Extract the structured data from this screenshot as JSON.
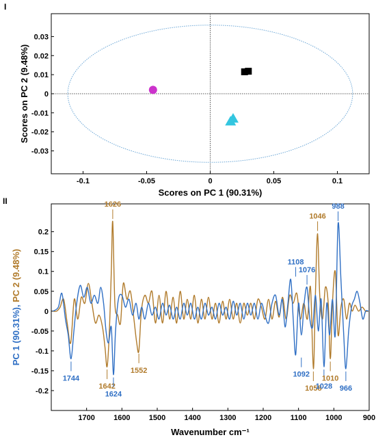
{
  "panel_labels": [
    "I",
    "II"
  ],
  "chart_data": [
    {
      "type": "scatter",
      "panel": "I",
      "xlabel": "Scores on PC 1 (90.31%)",
      "ylabel": "Scores on PC 2 (9.48%)",
      "xlim": [
        -0.125,
        0.125
      ],
      "ylim": [
        -0.042,
        0.042
      ],
      "xticks": [
        "-0.1",
        "-0.05",
        "0",
        "0.05",
        "0.1"
      ],
      "yticks": [
        "0.03",
        "0.02",
        "0.01",
        "0",
        "-0.01",
        "-0.02",
        "-0.03"
      ],
      "xtick_values": [
        -0.1,
        -0.05,
        0,
        0.05,
        0.1
      ],
      "ytick_values": [
        0.03,
        0.02,
        0.01,
        0,
        -0.01,
        -0.02,
        -0.03
      ],
      "confidence_ellipse": {
        "x_radius": 0.112,
        "y_radius": 0.036
      },
      "points": [
        {
          "marker": "circle",
          "color": "#cc33cc",
          "x": -0.045,
          "y": 0.002
        },
        {
          "marker": "square",
          "color": "#000000",
          "x": 0.027,
          "y": 0.0115
        },
        {
          "marker": "square",
          "color": "#000000",
          "x": 0.03,
          "y": 0.0118
        },
        {
          "marker": "triangle",
          "color": "#33c6e0",
          "x": 0.018,
          "y": -0.013
        },
        {
          "marker": "triangle",
          "color": "#33c6e0",
          "x": 0.016,
          "y": -0.0145
        }
      ],
      "grid": false
    },
    {
      "type": "line",
      "panel": "II",
      "xlabel": "Wavenumber cm⁻¹",
      "ylabel_parts": [
        {
          "text": "PC 1 (90.31%)",
          "color": "#2f6fc4"
        },
        {
          "text": ", ",
          "color": "#2f6fc4"
        },
        {
          "text": "PC 2 (9.48%)",
          "color": "#b07a2a"
        }
      ],
      "xlim": [
        1800,
        900
      ],
      "ylim": [
        -0.25,
        0.27
      ],
      "xticks": [
        "1700",
        "1600",
        "1500",
        "1400",
        "1300",
        "1200",
        "1100",
        "1000",
        "900"
      ],
      "xtick_values": [
        1700,
        1600,
        1500,
        1400,
        1300,
        1200,
        1100,
        1000,
        900
      ],
      "yticks": [
        "0.2",
        "0.15",
        "0.1",
        "0.05",
        "0",
        "-0.05",
        "-0.1",
        "-0.15",
        "-0.2"
      ],
      "ytick_values": [
        0.2,
        0.15,
        0.1,
        0.05,
        0,
        -0.05,
        -0.1,
        -0.15,
        -0.2
      ],
      "series": [
        {
          "name": "PC 1 (90.31%)",
          "color": "#2f6fc4",
          "x": [
            1795,
            1780,
            1770,
            1760,
            1752,
            1744,
            1736,
            1728,
            1718,
            1708,
            1698,
            1688,
            1678,
            1668,
            1660,
            1652,
            1645,
            1638,
            1630,
            1624,
            1618,
            1610,
            1600,
            1590,
            1580,
            1570,
            1560,
            1552,
            1544,
            1535,
            1525,
            1515,
            1505,
            1495,
            1485,
            1475,
            1465,
            1455,
            1445,
            1435,
            1425,
            1415,
            1405,
            1395,
            1385,
            1375,
            1365,
            1355,
            1345,
            1335,
            1325,
            1315,
            1305,
            1295,
            1285,
            1275,
            1265,
            1255,
            1245,
            1235,
            1225,
            1215,
            1205,
            1195,
            1185,
            1175,
            1165,
            1155,
            1146,
            1138,
            1130,
            1122,
            1115,
            1108,
            1100,
            1092,
            1084,
            1076,
            1068,
            1060,
            1052,
            1044,
            1036,
            1028,
            1020,
            1012,
            1004,
            996,
            988,
            980,
            972,
            966,
            958,
            950,
            942,
            934,
            926,
            918,
            910,
            902
          ],
          "y": [
            0.0,
            0.01,
            0.045,
            -0.02,
            -0.06,
            -0.12,
            -0.05,
            0.02,
            0.065,
            0.035,
            0.06,
            0.02,
            0.04,
            0.02,
            0.06,
            0.02,
            -0.05,
            -0.08,
            -0.04,
            -0.16,
            -0.05,
            0.03,
            0.04,
            0.01,
            0.03,
            -0.01,
            0.02,
            -0.02,
            0.01,
            -0.02,
            0.02,
            -0.01,
            0.01,
            -0.02,
            0.02,
            -0.01,
            0.015,
            -0.02,
            0.01,
            -0.02,
            0.02,
            -0.01,
            0.02,
            -0.02,
            0.01,
            -0.02,
            0.02,
            -0.01,
            0.01,
            -0.02,
            0.02,
            -0.01,
            0.01,
            -0.02,
            0.025,
            -0.01,
            0.02,
            -0.02,
            0.02,
            -0.01,
            0.02,
            -0.02,
            0.02,
            -0.01,
            -0.03,
            0.02,
            0.04,
            -0.01,
            0.03,
            -0.04,
            0.02,
            0.08,
            -0.02,
            -0.11,
            0.02,
            -0.06,
            0.02,
            0.06,
            -0.02,
            -0.04,
            0.04,
            -0.05,
            0.03,
            -0.14,
            0.02,
            -0.06,
            0.03,
            -0.06,
            0.22,
            0.08,
            -0.06,
            -0.145,
            -0.05,
            0.01,
            0.03,
            0.05,
            0.02,
            -0.02,
            0.0,
            0.0
          ]
        },
        {
          "name": "PC 2 (9.48%)",
          "color": "#b07a2a",
          "x": [
            1795,
            1785,
            1775,
            1765,
            1755,
            1745,
            1735,
            1725,
            1715,
            1705,
            1695,
            1685,
            1675,
            1665,
            1655,
            1648,
            1642,
            1636,
            1630,
            1626,
            1620,
            1612,
            1604,
            1596,
            1586,
            1576,
            1566,
            1558,
            1552,
            1545,
            1535,
            1525,
            1515,
            1505,
            1495,
            1485,
            1475,
            1465,
            1455,
            1445,
            1435,
            1425,
            1415,
            1405,
            1395,
            1385,
            1375,
            1365,
            1355,
            1345,
            1335,
            1325,
            1315,
            1305,
            1295,
            1285,
            1275,
            1265,
            1255,
            1245,
            1235,
            1225,
            1215,
            1205,
            1195,
            1185,
            1175,
            1165,
            1155,
            1145,
            1135,
            1125,
            1115,
            1105,
            1095,
            1085,
            1075,
            1066,
            1058,
            1052,
            1046,
            1040,
            1032,
            1024,
            1016,
            1010,
            1004,
            996,
            988,
            980,
            972,
            964,
            956,
            948,
            940,
            930,
            920,
            910,
            902
          ],
          "y": [
            0.0,
            0.0,
            0.01,
            0.03,
            -0.03,
            -0.08,
            0.03,
            -0.02,
            0.035,
            0.02,
            0.07,
            0.02,
            -0.03,
            -0.01,
            -0.04,
            -0.09,
            -0.14,
            -0.06,
            0.1,
            0.225,
            0.02,
            -0.01,
            -0.03,
            0.07,
            0.03,
            0.05,
            -0.02,
            -0.08,
            -0.1,
            0.0,
            0.04,
            0.02,
            0.05,
            -0.03,
            0.04,
            -0.03,
            0.05,
            -0.02,
            0.035,
            -0.03,
            0.05,
            -0.02,
            0.03,
            -0.02,
            0.04,
            -0.03,
            0.03,
            -0.02,
            0.035,
            -0.02,
            0.02,
            -0.03,
            0.025,
            -0.02,
            0.03,
            -0.02,
            0.02,
            -0.03,
            0.02,
            -0.01,
            0.02,
            -0.02,
            0.03,
            0.01,
            -0.02,
            0.03,
            -0.02,
            0.025,
            -0.015,
            0.035,
            -0.02,
            0.04,
            0.02,
            0.045,
            -0.02,
            0.02,
            -0.02,
            0.06,
            -0.145,
            0.05,
            0.195,
            0.04,
            -0.02,
            0.06,
            0.02,
            -0.12,
            0.02,
            0.1,
            -0.06,
            0.01,
            0.03,
            -0.02,
            0.02,
            0.0,
            0.015,
            0.0,
            0.01,
            0.0,
            0.0
          ]
        }
      ],
      "annotations": [
        {
          "text": "1744",
          "x": 1744,
          "y": -0.12,
          "color": "#2f6fc4",
          "side": "below"
        },
        {
          "text": "1642",
          "x": 1642,
          "y": -0.14,
          "color": "#b07a2a",
          "side": "below"
        },
        {
          "text": "1624",
          "x": 1624,
          "y": -0.16,
          "color": "#2f6fc4",
          "side": "below"
        },
        {
          "text": "1626",
          "x": 1626,
          "y": 0.225,
          "color": "#b07a2a",
          "side": "above"
        },
        {
          "text": "1552",
          "x": 1552,
          "y": -0.1,
          "color": "#b07a2a",
          "side": "below"
        },
        {
          "text": "1108",
          "x": 1108,
          "y": 0.08,
          "color": "#2f6fc4",
          "side": "above"
        },
        {
          "text": "1076",
          "x": 1076,
          "y": 0.06,
          "color": "#2f6fc4",
          "side": "above"
        },
        {
          "text": "1046",
          "x": 1046,
          "y": 0.195,
          "color": "#b07a2a",
          "side": "above"
        },
        {
          "text": "988",
          "x": 988,
          "y": 0.22,
          "color": "#2f6fc4",
          "side": "above"
        },
        {
          "text": "1092",
          "x": 1092,
          "y": -0.11,
          "color": "#2f6fc4",
          "side": "below"
        },
        {
          "text": "1058",
          "x": 1058,
          "y": -0.145,
          "color": "#b07a2a",
          "side": "below"
        },
        {
          "text": "1028",
          "x": 1028,
          "y": -0.14,
          "color": "#2f6fc4",
          "side": "below"
        },
        {
          "text": "1010",
          "x": 1010,
          "y": -0.12,
          "color": "#b07a2a",
          "side": "below"
        },
        {
          "text": "966",
          "x": 966,
          "y": -0.145,
          "color": "#2f6fc4",
          "side": "below"
        }
      ],
      "grid": false
    }
  ]
}
